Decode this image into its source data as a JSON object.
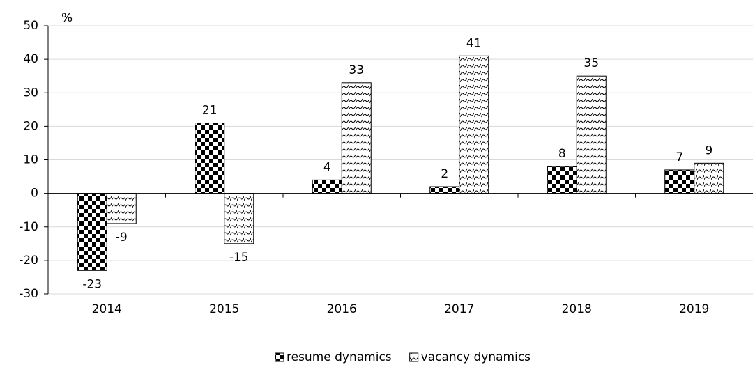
{
  "chart_data": {
    "type": "bar",
    "y_label": "%",
    "categories": [
      "2014",
      "2015",
      "2016",
      "2017",
      "2018",
      "2019"
    ],
    "series": [
      {
        "name": "resume dynamics",
        "pattern": "checker",
        "values": [
          -23,
          21,
          4,
          2,
          8,
          7
        ]
      },
      {
        "name": "vacancy dynamics",
        "pattern": "wave",
        "values": [
          -9,
          -15,
          33,
          41,
          35,
          9
        ]
      }
    ],
    "ylim": [
      -30,
      50
    ],
    "yticks": [
      -30,
      -20,
      -10,
      0,
      10,
      20,
      30,
      40,
      50
    ],
    "grid": true,
    "legend": "bottom"
  }
}
